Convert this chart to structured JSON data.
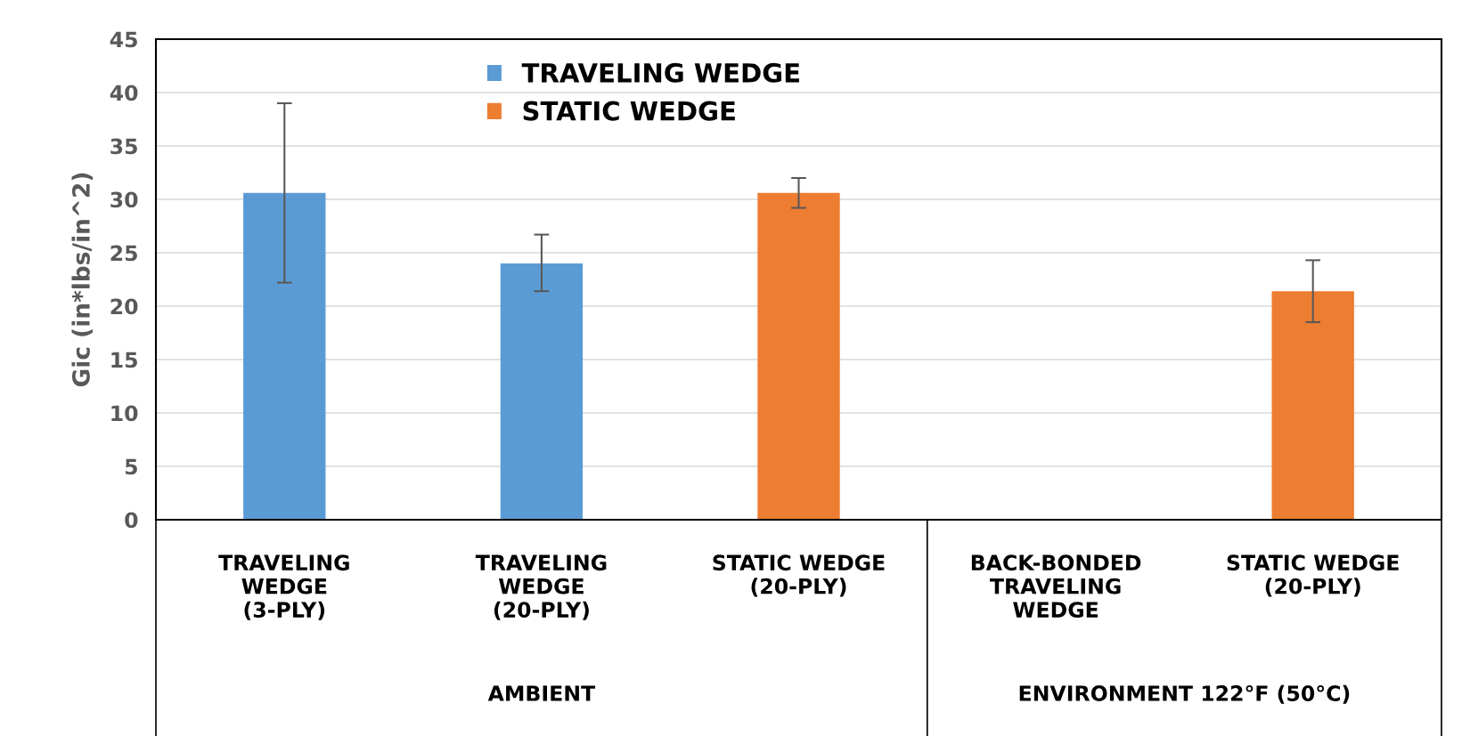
{
  "chart_data": {
    "type": "bar",
    "categories": [
      "TRAVELING\nWEDGE\n(3-PLY)",
      "TRAVELING\nWEDGE\n(20-PLY)",
      "STATIC WEDGE\n(20-PLY)",
      "BACK-BONDED\nTRAVELING\nWEDGE",
      "STATIC WEDGE\n(20-PLY)"
    ],
    "series": [
      {
        "name": "TRAVELING WEDGE",
        "color": "#5b9bd5",
        "values": [
          30.6,
          24.0,
          null,
          null,
          null
        ],
        "errors": [
          [
            22.2,
            39.0
          ],
          [
            21.4,
            26.7
          ],
          null,
          null,
          null
        ]
      },
      {
        "name": "STATIC WEDGE",
        "color": "#ed7d31",
        "values": [
          null,
          null,
          30.6,
          null,
          21.4
        ],
        "errors": [
          null,
          null,
          [
            29.2,
            32.0
          ],
          null,
          [
            18.5,
            24.3
          ]
        ]
      }
    ],
    "ylabel": "Gic (in*lbs/in^2)",
    "ylim": [
      0,
      45
    ],
    "yticks": [
      0,
      5,
      10,
      15,
      20,
      25,
      30,
      35,
      40,
      45
    ],
    "grid": "y",
    "legend": "top",
    "annotations": [
      "AMBIENT",
      "ENVIRONMENT 122°F (50°C)"
    ]
  }
}
